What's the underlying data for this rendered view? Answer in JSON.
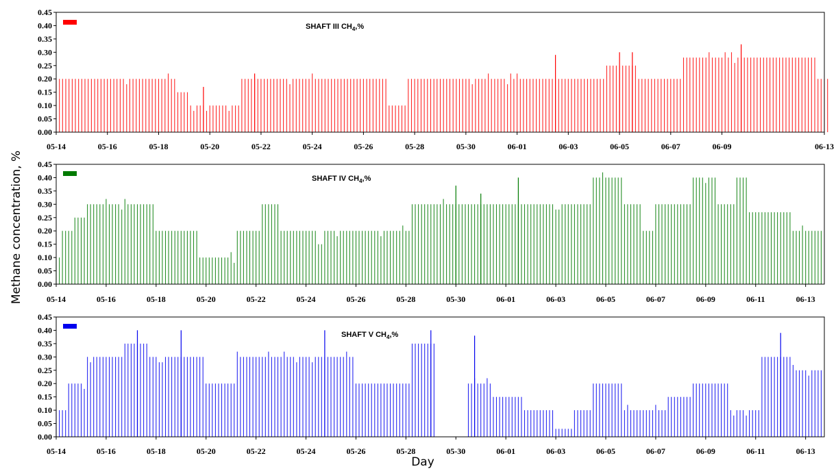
{
  "figure": {
    "ylabel": "Methane concentration, %",
    "xlabel": "Day"
  },
  "chart_data": [
    {
      "type": "bar",
      "title_main": "SHAFT III CH",
      "title_sub": "4",
      "title_tail": ",%",
      "color": "#ff0000",
      "x_start": "05-14",
      "x_end": "06-13",
      "ylim": [
        0,
        0.45
      ],
      "yticks": [
        "0.00",
        "0.05",
        "0.10",
        "0.15",
        "0.20",
        "0.25",
        "0.30",
        "0.35",
        "0.40",
        "0.45"
      ],
      "xticks": [
        "05-14",
        "05-16",
        "05-18",
        "05-20",
        "05-22",
        "05-24",
        "05-26",
        "05-28",
        "05-30",
        "06-01",
        "06-03",
        "06-05",
        "06-07",
        "06-09",
        "06-13"
      ],
      "segments": [
        {
          "from": "05-14",
          "to": "05-18 18:00",
          "value": 0.2
        },
        {
          "from": "05-18 18:00",
          "to": "05-19 06:00",
          "value": 0.15
        },
        {
          "from": "05-19 06:00",
          "to": "05-21 06:00",
          "value": 0.1
        },
        {
          "from": "05-21 06:00",
          "to": "05-27 00:00",
          "value": 0.2
        },
        {
          "from": "05-27 00:00",
          "to": "05-27 18:00",
          "value": 0.1
        },
        {
          "from": "05-27 18:00",
          "to": "06-04 12:00",
          "value": 0.2
        },
        {
          "from": "06-04 12:00",
          "to": "06-05 18:00",
          "value": 0.25
        },
        {
          "from": "06-05 18:00",
          "to": "06-07 12:00",
          "value": 0.2
        },
        {
          "from": "06-07 12:00",
          "to": "06-12 18:00",
          "value": 0.28
        },
        {
          "from": "06-12 18:00",
          "to": "06-13 06:00",
          "value": 0.2
        }
      ],
      "peaks": [
        {
          "x": "05-19 18:00",
          "value": 0.17
        },
        {
          "x": "05-21 18:00",
          "value": 0.22
        },
        {
          "x": "06-02 12:00",
          "value": 0.29
        },
        {
          "x": "06-05 00:00",
          "value": 0.3
        },
        {
          "x": "06-05 12:00",
          "value": 0.3
        },
        {
          "x": "06-09 18:00",
          "value": 0.33
        }
      ]
    },
    {
      "type": "bar",
      "title_main": "SHAFT IV CH",
      "title_sub": "4",
      "title_tail": ",%",
      "color": "#007a00",
      "x_start": "05-14",
      "x_end": "06-13 18:00",
      "ylim": [
        0,
        0.45
      ],
      "yticks": [
        "0.00",
        "0.05",
        "0.10",
        "0.15",
        "0.20",
        "0.25",
        "0.30",
        "0.35",
        "0.40",
        "0.45"
      ],
      "xticks": [
        "05-14",
        "05-16",
        "05-18",
        "05-20",
        "05-22",
        "05-24",
        "05-26",
        "05-28",
        "05-30",
        "06-01",
        "06-03",
        "06-05",
        "06-07",
        "06-09",
        "06-11",
        "06-13"
      ],
      "segments": [
        {
          "from": "05-14",
          "to": "05-14 06:00",
          "value": 0.1
        },
        {
          "from": "05-14 06:00",
          "to": "05-14 18:00",
          "value": 0.2
        },
        {
          "from": "05-14 18:00",
          "to": "05-15 06:00",
          "value": 0.25
        },
        {
          "from": "05-15 06:00",
          "to": "05-18 00:00",
          "value": 0.3
        },
        {
          "from": "05-18 00:00",
          "to": "05-19 18:00",
          "value": 0.2
        },
        {
          "from": "05-19 18:00",
          "to": "05-21 06:00",
          "value": 0.1
        },
        {
          "from": "05-21 06:00",
          "to": "05-22 06:00",
          "value": 0.2
        },
        {
          "from": "05-22 06:00",
          "to": "05-23 00:00",
          "value": 0.3
        },
        {
          "from": "05-23 00:00",
          "to": "05-24 12:00",
          "value": 0.2
        },
        {
          "from": "05-24 12:00",
          "to": "05-24 18:00",
          "value": 0.15
        },
        {
          "from": "05-24 18:00",
          "to": "05-28 06:00",
          "value": 0.2
        },
        {
          "from": "05-28 06:00",
          "to": "06-04 12:00",
          "value": 0.3
        },
        {
          "from": "06-04 12:00",
          "to": "06-05 18:00",
          "value": 0.4
        },
        {
          "from": "06-05 18:00",
          "to": "06-06 12:00",
          "value": 0.3
        },
        {
          "from": "06-06 12:00",
          "to": "06-07 00:00",
          "value": 0.2
        },
        {
          "from": "06-07 00:00",
          "to": "06-08 12:00",
          "value": 0.3
        },
        {
          "from": "06-08 12:00",
          "to": "06-09 12:00",
          "value": 0.4
        },
        {
          "from": "06-09 12:00",
          "to": "06-10 06:00",
          "value": 0.3
        },
        {
          "from": "06-10 06:00",
          "to": "06-10 18:00",
          "value": 0.4
        },
        {
          "from": "06-10 18:00",
          "to": "06-12 12:00",
          "value": 0.27
        },
        {
          "from": "06-12 12:00",
          "to": "06-13 18:00",
          "value": 0.2
        }
      ],
      "peaks": [
        {
          "x": "05-30 00:00",
          "value": 0.37
        },
        {
          "x": "05-31 00:00",
          "value": 0.34
        },
        {
          "x": "06-01 12:00",
          "value": 0.4
        }
      ]
    },
    {
      "type": "bar",
      "title_main": "SHAFT V CH",
      "title_sub": "4",
      "title_tail": ",%",
      "color": "#0000ee",
      "x_start": "05-14",
      "x_end": "06-13 18:00",
      "ylim": [
        0,
        0.45
      ],
      "yticks": [
        "0.00",
        "0.05",
        "0.10",
        "0.15",
        "0.20",
        "0.25",
        "0.30",
        "0.35",
        "0.40",
        "0.45"
      ],
      "xticks": [
        "05-14",
        "05-16",
        "05-18",
        "05-20",
        "05-22",
        "05-24",
        "05-26",
        "05-28",
        "05-30",
        "06-01",
        "06-03",
        "06-05",
        "06-07",
        "06-09",
        "06-11",
        "06-13"
      ],
      "segments": [
        {
          "from": "05-14",
          "to": "05-14 12:00",
          "value": 0.1
        },
        {
          "from": "05-14 12:00",
          "to": "05-15 06:00",
          "value": 0.2
        },
        {
          "from": "05-15 06:00",
          "to": "05-16 18:00",
          "value": 0.3
        },
        {
          "from": "05-16 18:00",
          "to": "05-17 18:00",
          "value": 0.35
        },
        {
          "from": "05-17 18:00",
          "to": "05-18 12:00",
          "value": 0.3
        },
        {
          "from": "05-18 12:00",
          "to": "05-19 06:00",
          "value": 0.3
        },
        {
          "from": "05-19 06:00",
          "to": "05-20 00:00",
          "value": 0.3
        },
        {
          "from": "05-20 00:00",
          "to": "05-21 06:00",
          "value": 0.2
        },
        {
          "from": "05-21 06:00",
          "to": "05-26 00:00",
          "value": 0.3
        },
        {
          "from": "05-26 00:00",
          "to": "05-28 06:00",
          "value": 0.2
        },
        {
          "from": "05-28 06:00",
          "to": "05-29 06:00",
          "value": 0.35
        },
        {
          "from": "05-30 12:00",
          "to": "05-31 12:00",
          "value": 0.2
        },
        {
          "from": "05-31 12:00",
          "to": "06-01 18:00",
          "value": 0.15
        },
        {
          "from": "06-01 18:00",
          "to": "06-03 00:00",
          "value": 0.1
        },
        {
          "from": "06-03 00:00",
          "to": "06-03 18:00",
          "value": 0.03
        },
        {
          "from": "06-03 18:00",
          "to": "06-04 12:00",
          "value": 0.1
        },
        {
          "from": "06-04 12:00",
          "to": "06-05 18:00",
          "value": 0.2
        },
        {
          "from": "06-05 18:00",
          "to": "06-06 18:00",
          "value": 0.1
        },
        {
          "from": "06-06 18:00",
          "to": "06-07 12:00",
          "value": 0.1
        },
        {
          "from": "06-07 12:00",
          "to": "06-08 12:00",
          "value": 0.15
        },
        {
          "from": "06-08 12:00",
          "to": "06-10 00:00",
          "value": 0.2
        },
        {
          "from": "06-10 00:00",
          "to": "06-11 06:00",
          "value": 0.1
        },
        {
          "from": "06-11 06:00",
          "to": "06-12 12:00",
          "value": 0.3
        },
        {
          "from": "06-12 12:00",
          "to": "06-13 18:00",
          "value": 0.25
        }
      ],
      "peaks": [
        {
          "x": "05-17 06:00",
          "value": 0.4
        },
        {
          "x": "05-19 00:00",
          "value": 0.4
        },
        {
          "x": "05-24 18:00",
          "value": 0.4
        },
        {
          "x": "05-29 00:00",
          "value": 0.4
        },
        {
          "x": "05-30 18:00",
          "value": 0.38
        },
        {
          "x": "06-12 00:00",
          "value": 0.39
        }
      ]
    }
  ]
}
